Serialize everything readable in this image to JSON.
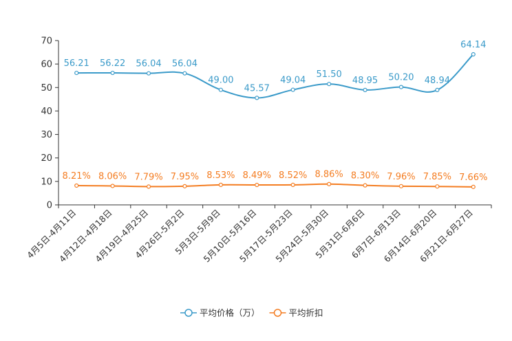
{
  "chart_data": {
    "type": "line",
    "title": "",
    "xlabel": "",
    "ylabel": "",
    "ylim": [
      0,
      70
    ],
    "yticks": [
      0,
      10,
      20,
      30,
      40,
      50,
      60,
      70
    ],
    "categories": [
      "4月5日-4月11日",
      "4月12日-4月18日",
      "4月19日-4月25日",
      "4月26日-5月2日",
      "5月3日-5月9日",
      "5月10日-5月16日",
      "5月17日-5月23日",
      "5月24日-5月30日",
      "5月31日-6月6日",
      "6月7日-6月13日",
      "6月14日-6月20日",
      "6月21日-6月27日"
    ],
    "series": [
      {
        "name": "平均价格（万）",
        "color": "#3a9ac9",
        "values": [
          56.21,
          56.22,
          56.04,
          56.04,
          49.0,
          45.57,
          49.04,
          51.5,
          48.95,
          50.2,
          48.94,
          64.14
        ],
        "labels": [
          "56.21",
          "56.22",
          "56.04",
          "56.04",
          "49.00",
          "45.57",
          "49.04",
          "51.50",
          "48.95",
          "50.20",
          "48.94",
          "64.14"
        ]
      },
      {
        "name": "平均折扣",
        "color": "#f47c20",
        "values": [
          8.21,
          8.06,
          7.79,
          7.95,
          8.53,
          8.49,
          8.52,
          8.86,
          8.3,
          7.96,
          7.85,
          7.66
        ],
        "labels": [
          "8.21%",
          "8.06%",
          "7.79%",
          "7.95%",
          "8.53%",
          "8.49%",
          "8.52%",
          "8.86%",
          "8.30%",
          "7.96%",
          "7.85%",
          "7.66%"
        ]
      }
    ],
    "legend_position": "bottom"
  }
}
